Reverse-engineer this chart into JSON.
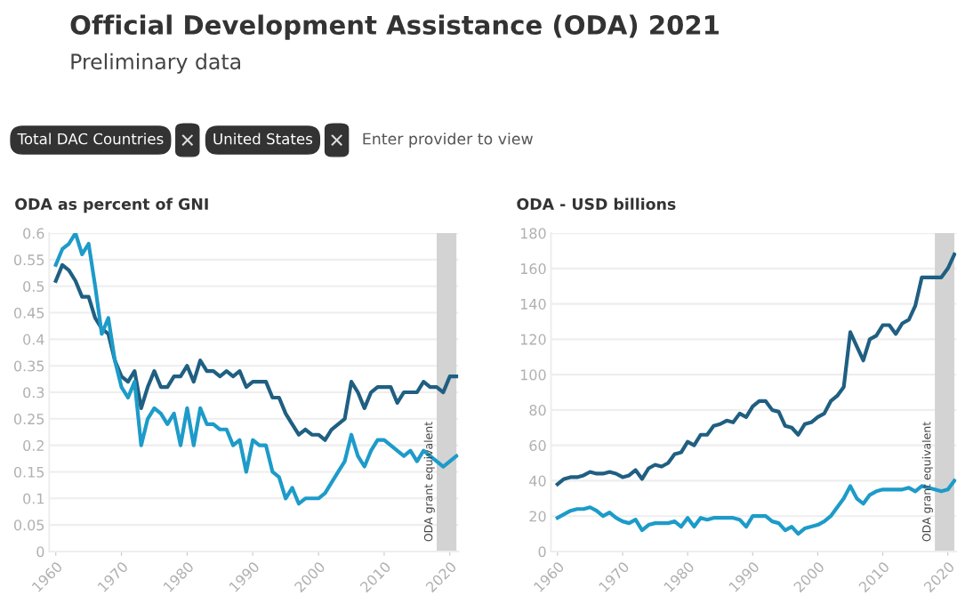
{
  "chart_data": [
    {
      "type": "other",
      "title": "Official Development Assistance (ODA) 2021",
      "subtitle": "Preliminary data",
      "annotations": [
        "Total DAC Countries",
        "United States",
        "Enter provider to view"
      ]
    },
    {
      "type": "line",
      "title": "ODA as percent of GNI",
      "x": [
        1960,
        1961,
        1962,
        1963,
        1964,
        1965,
        1966,
        1967,
        1968,
        1969,
        1970,
        1971,
        1972,
        1973,
        1974,
        1975,
        1976,
        1977,
        1978,
        1979,
        1980,
        1981,
        1982,
        1983,
        1984,
        1985,
        1986,
        1987,
        1988,
        1989,
        1990,
        1991,
        1992,
        1993,
        1994,
        1995,
        1996,
        1997,
        1998,
        1999,
        2000,
        2001,
        2002,
        2003,
        2004,
        2005,
        2006,
        2007,
        2008,
        2009,
        2010,
        2011,
        2012,
        2013,
        2014,
        2015,
        2016,
        2017,
        2018,
        2019,
        2020,
        2021
      ],
      "series": [
        {
          "color": "#1f5f82",
          "values": [
            0.51,
            0.54,
            0.53,
            0.51,
            0.48,
            0.48,
            0.44,
            0.42,
            0.41,
            0.36,
            0.33,
            0.32,
            0.34,
            0.27,
            0.31,
            0.34,
            0.31,
            0.31,
            0.33,
            0.33,
            0.35,
            0.32,
            0.36,
            0.34,
            0.34,
            0.33,
            0.34,
            0.33,
            0.34,
            0.31,
            0.32,
            0.32,
            0.32,
            0.29,
            0.29,
            0.26,
            0.24,
            0.22,
            0.23,
            0.22,
            0.22,
            0.21,
            0.23,
            0.24,
            0.25,
            0.32,
            0.3,
            0.27,
            0.3,
            0.31,
            0.31,
            0.31,
            0.28,
            0.3,
            0.3,
            0.3,
            0.32,
            0.31,
            0.31,
            0.3,
            0.33,
            0.33
          ]
        },
        {
          "color": "#1d9bc9",
          "values": [
            0.54,
            0.57,
            0.58,
            0.6,
            0.56,
            0.58,
            0.5,
            0.41,
            0.44,
            0.36,
            0.31,
            0.29,
            0.32,
            0.2,
            0.25,
            0.27,
            0.26,
            0.24,
            0.26,
            0.2,
            0.27,
            0.2,
            0.27,
            0.24,
            0.24,
            0.23,
            0.23,
            0.2,
            0.21,
            0.15,
            0.21,
            0.2,
            0.2,
            0.15,
            0.14,
            0.1,
            0.12,
            0.09,
            0.1,
            0.1,
            0.1,
            0.11,
            0.13,
            0.15,
            0.17,
            0.22,
            0.18,
            0.16,
            0.19,
            0.21,
            0.21,
            0.2,
            0.19,
            0.18,
            0.19,
            0.17,
            0.19,
            0.18,
            0.17,
            0.16,
            0.17,
            0.18
          ]
        }
      ],
      "xlim": [
        1959,
        2021.3
      ],
      "xticks": [
        1960,
        1970,
        1980,
        1990,
        2000,
        2010,
        2020
      ],
      "ylim": [
        0,
        0.6
      ],
      "yticks": [
        0,
        0.05,
        0.1,
        0.15,
        0.2,
        0.25,
        0.3,
        0.35,
        0.4,
        0.45,
        0.5,
        0.55,
        0.6
      ],
      "bands": [
        {
          "axis": "x",
          "from": 2018,
          "to": 2021,
          "label": "ODA grant equivalent",
          "color": "#d3d3d3"
        }
      ],
      "grid": "y",
      "marker": "none",
      "line_style": "solid"
    },
    {
      "type": "line",
      "title": "ODA - USD billions",
      "x": [
        1960,
        1961,
        1962,
        1963,
        1964,
        1965,
        1966,
        1967,
        1968,
        1969,
        1970,
        1971,
        1972,
        1973,
        1974,
        1975,
        1976,
        1977,
        1978,
        1979,
        1980,
        1981,
        1982,
        1983,
        1984,
        1985,
        1986,
        1987,
        1988,
        1989,
        1990,
        1991,
        1992,
        1993,
        1994,
        1995,
        1996,
        1997,
        1998,
        1999,
        2000,
        2001,
        2002,
        2003,
        2004,
        2005,
        2006,
        2007,
        2008,
        2009,
        2010,
        2011,
        2012,
        2013,
        2014,
        2015,
        2016,
        2017,
        2018,
        2019,
        2020,
        2021
      ],
      "series": [
        {
          "color": "#1f5f82",
          "values": [
            38,
            41,
            42,
            42,
            43,
            45,
            44,
            44,
            45,
            44,
            42,
            43,
            46,
            41,
            47,
            49,
            48,
            50,
            55,
            56,
            62,
            60,
            66,
            66,
            71,
            72,
            74,
            73,
            78,
            76,
            82,
            85,
            85,
            80,
            79,
            71,
            70,
            66,
            72,
            73,
            76,
            78,
            85,
            88,
            93,
            124,
            116,
            108,
            120,
            122,
            128,
            128,
            123,
            129,
            131,
            139,
            155,
            155,
            155,
            155,
            160,
            168
          ]
        },
        {
          "color": "#1d9bc9",
          "values": [
            19,
            21,
            23,
            24,
            24,
            25,
            23,
            20,
            22,
            19,
            17,
            16,
            18,
            12,
            15,
            16,
            16,
            16,
            17,
            14,
            19,
            14,
            19,
            18,
            19,
            19,
            19,
            19,
            18,
            14,
            20,
            20,
            20,
            17,
            16,
            12,
            14,
            10,
            13,
            14,
            15,
            17,
            20,
            25,
            30,
            37,
            30,
            27,
            32,
            34,
            35,
            35,
            35,
            35,
            36,
            34,
            37,
            36,
            35,
            34,
            35,
            40
          ]
        }
      ],
      "xlim": [
        1959,
        2021.3
      ],
      "xticks": [
        1960,
        1970,
        1980,
        1990,
        2000,
        2010,
        2020
      ],
      "ylim": [
        0,
        180
      ],
      "yticks": [
        0,
        20,
        40,
        60,
        80,
        100,
        120,
        140,
        160,
        180
      ],
      "bands": [
        {
          "axis": "x",
          "from": 2018,
          "to": 2021,
          "label": "ODA grant equivalent",
          "color": "#d3d3d3"
        }
      ],
      "grid": "y",
      "marker": "none",
      "line_style": "solid"
    }
  ]
}
